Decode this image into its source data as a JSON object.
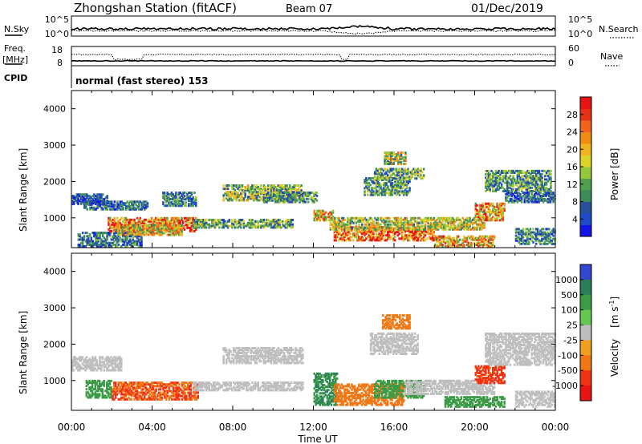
{
  "header": {
    "station": "Zhongshan Station (fitACF)",
    "beam": "Beam 07",
    "date": "01/Dec/2019"
  },
  "summary_panels": {
    "nsky": {
      "label": "N.Sky",
      "ticks": [
        "10^5",
        "10^0"
      ]
    },
    "nsearch": {
      "label": "N.Search",
      "ticks": [
        "10^5",
        "10^0"
      ]
    },
    "freq": {
      "label_top": "Freq.",
      "label_unit": "[MHz]",
      "ticks": [
        "18",
        "8"
      ]
    },
    "nave": {
      "label": "Nave",
      "ticks": [
        "60",
        "0"
      ]
    },
    "cpid": {
      "label": "CPID",
      "text": "normal (fast stereo) 153"
    }
  },
  "chart_data": [
    {
      "type": "heatmap",
      "name": "power",
      "xlabel": "",
      "ylabel": "Slant Range [km]",
      "x_ticks": [
        "00:00",
        "04:00",
        "08:00",
        "12:00",
        "16:00",
        "20:00",
        "00:00"
      ],
      "x_range_hours": [
        0,
        24
      ],
      "y_ticks": [
        1000,
        2000,
        3000,
        4000
      ],
      "ylim": [
        180,
        4500
      ],
      "colorbar": {
        "label": "Power [dB]",
        "ticks": [
          4,
          8,
          12,
          16,
          20,
          24,
          28
        ],
        "range": [
          0,
          32
        ],
        "colors": [
          "#1414e6",
          "#1e4bc8",
          "#28509b",
          "#3c8c5a",
          "#50a050",
          "#96c83c",
          "#dcd228",
          "#f0b41e",
          "#f08c14",
          "#f0641e",
          "#e63214",
          "#e61414"
        ]
      },
      "regions": [
        {
          "t": [
            0.0,
            1.8
          ],
          "r": [
            1350,
            1650
          ],
          "v": 5
        },
        {
          "t": [
            0.6,
            3.8
          ],
          "r": [
            1200,
            1450
          ],
          "v": 7
        },
        {
          "t": [
            0.3,
            3.5
          ],
          "r": [
            180,
            600
          ],
          "v": 8
        },
        {
          "t": [
            1.8,
            6.2
          ],
          "r": [
            600,
            1000
          ],
          "v": 24
        },
        {
          "t": [
            2.2,
            5.5
          ],
          "r": [
            500,
            800
          ],
          "v": 18
        },
        {
          "t": [
            6.0,
            11.0
          ],
          "r": [
            700,
            950
          ],
          "v": 12
        },
        {
          "t": [
            4.5,
            6.2
          ],
          "r": [
            1300,
            1700
          ],
          "v": 9
        },
        {
          "t": [
            7.5,
            11.5
          ],
          "r": [
            1450,
            1900
          ],
          "v": 14
        },
        {
          "t": [
            9.5,
            12.2
          ],
          "r": [
            1400,
            1700
          ],
          "v": 10
        },
        {
          "t": [
            12.0,
            13.0
          ],
          "r": [
            900,
            1200
          ],
          "v": 20
        },
        {
          "t": [
            13.0,
            18.0
          ],
          "r": [
            350,
            750
          ],
          "v": 26
        },
        {
          "t": [
            12.8,
            20.5
          ],
          "r": [
            650,
            1000
          ],
          "v": 16
        },
        {
          "t": [
            14.5,
            16.8
          ],
          "r": [
            1600,
            2100
          ],
          "v": 10
        },
        {
          "t": [
            15.0,
            17.5
          ],
          "r": [
            2050,
            2350
          ],
          "v": 12
        },
        {
          "t": [
            15.5,
            16.6
          ],
          "r": [
            2450,
            2800
          ],
          "v": 16
        },
        {
          "t": [
            18.0,
            21.0
          ],
          "r": [
            180,
            500
          ],
          "v": 20
        },
        {
          "t": [
            20.0,
            21.5
          ],
          "r": [
            900,
            1400
          ],
          "v": 22
        },
        {
          "t": [
            20.5,
            23.8
          ],
          "r": [
            1700,
            2300
          ],
          "v": 11
        },
        {
          "t": [
            21.5,
            24.0
          ],
          "r": [
            1400,
            1700
          ],
          "v": 7
        },
        {
          "t": [
            22.0,
            24.0
          ],
          "r": [
            250,
            700
          ],
          "v": 9
        }
      ]
    },
    {
      "type": "heatmap",
      "name": "velocity",
      "xlabel": "Time UT",
      "ylabel": "Slant Range [km]",
      "x_ticks": [
        "00:00",
        "04:00",
        "08:00",
        "12:00",
        "16:00",
        "20:00",
        "00:00"
      ],
      "x_range_hours": [
        0,
        24
      ],
      "y_ticks": [
        1000,
        2000,
        3000,
        4000
      ],
      "ylim": [
        180,
        4500
      ],
      "colorbar": {
        "label": "Velocity [m s^-1]",
        "ticks": [
          "1000",
          "500",
          "100",
          "25",
          "-25",
          "-100",
          "-500",
          "-1000"
        ],
        "colors": [
          "#3246d2",
          "#2b7f58",
          "#3c9b46",
          "#64c850",
          "#bebebe",
          "#f0a01e",
          "#f07814",
          "#f03214",
          "#e61414"
        ]
      },
      "regions": [
        {
          "t": [
            0.0,
            2.5
          ],
          "r": [
            1250,
            1650
          ],
          "v": 0
        },
        {
          "t": [
            0.7,
            2.0
          ],
          "r": [
            500,
            1000
          ],
          "v": 150
        },
        {
          "t": [
            2.0,
            6.3
          ],
          "r": [
            450,
            950
          ],
          "v": -300
        },
        {
          "t": [
            6.0,
            11.5
          ],
          "r": [
            700,
            950
          ],
          "v": 0
        },
        {
          "t": [
            7.5,
            11.5
          ],
          "r": [
            1450,
            1900
          ],
          "v": 0
        },
        {
          "t": [
            12.0,
            13.2
          ],
          "r": [
            300,
            1200
          ],
          "v": 300
        },
        {
          "t": [
            13.0,
            16.5
          ],
          "r": [
            300,
            900
          ],
          "v": -200
        },
        {
          "t": [
            15.0,
            17.5
          ],
          "r": [
            500,
            1000
          ],
          "v": 200
        },
        {
          "t": [
            16.5,
            21.0
          ],
          "r": [
            600,
            1000
          ],
          "v": 0
        },
        {
          "t": [
            14.8,
            17.2
          ],
          "r": [
            1700,
            2300
          ],
          "v": 0
        },
        {
          "t": [
            15.4,
            16.8
          ],
          "r": [
            2400,
            2800
          ],
          "v": -150
        },
        {
          "t": [
            18.5,
            21.5
          ],
          "r": [
            250,
            550
          ],
          "v": 150
        },
        {
          "t": [
            20.0,
            21.5
          ],
          "r": [
            900,
            1400
          ],
          "v": -400
        },
        {
          "t": [
            20.5,
            24.0
          ],
          "r": [
            1400,
            2300
          ],
          "v": 0
        },
        {
          "t": [
            22.0,
            24.0
          ],
          "r": [
            250,
            700
          ],
          "v": 0
        }
      ]
    }
  ],
  "labels": {
    "power_colorbar": "Power [dB]",
    "velocity_colorbar": "Velocity",
    "velocity_unit": "[m s",
    "velocity_unit_exp": "-1",
    "velocity_unit_end": "]",
    "y_axis_label": "Slant Range [km]",
    "x_axis_label": "Time UT"
  }
}
